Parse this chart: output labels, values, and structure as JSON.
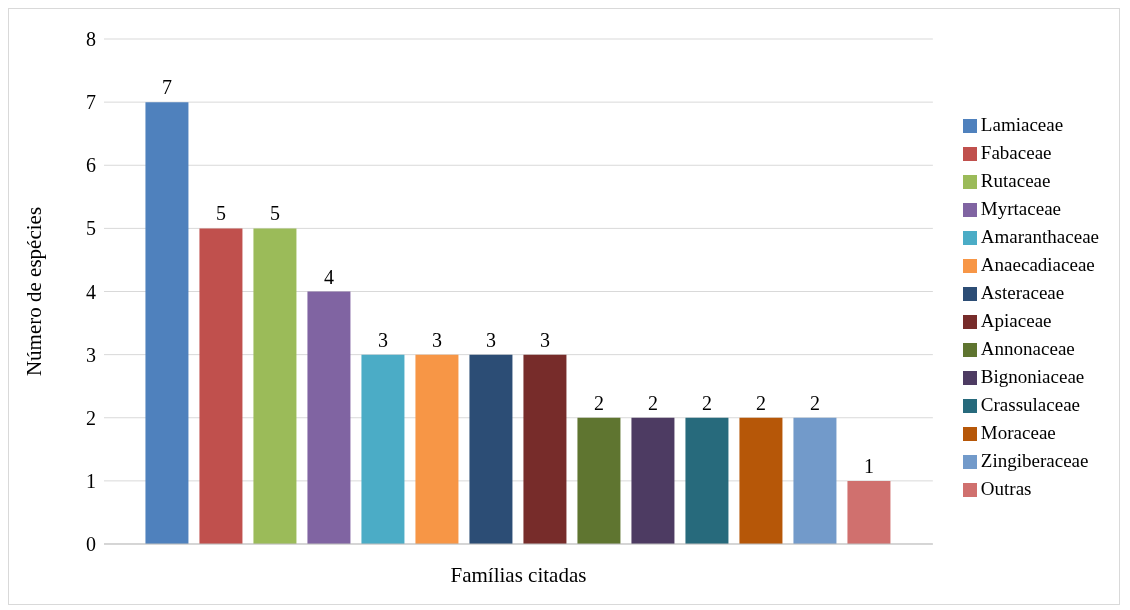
{
  "chart_data": {
    "type": "bar",
    "xlabel": "Famílias citadas",
    "ylabel": "Número de espécies",
    "categories": [
      null
    ],
    "series": [
      {
        "name": "Lamiaceae",
        "color": "#4f81bd",
        "values": [
          7
        ]
      },
      {
        "name": "Fabaceae",
        "color": "#c0504d",
        "values": [
          5
        ]
      },
      {
        "name": "Rutaceae",
        "color": "#9bbb59",
        "values": [
          5
        ]
      },
      {
        "name": "Myrtaceae",
        "color": "#8064a2",
        "values": [
          4
        ]
      },
      {
        "name": "Amaranthaceae",
        "color": "#4bacc6",
        "values": [
          3
        ]
      },
      {
        "name": "Anaecadiaceae",
        "color": "#f79646",
        "values": [
          3
        ]
      },
      {
        "name": "Asteraceae",
        "color": "#2c4d75",
        "values": [
          3
        ]
      },
      {
        "name": "Apiaceae",
        "color": "#772c2a",
        "values": [
          3
        ]
      },
      {
        "name": "Annonaceae",
        "color": "#5f7530",
        "values": [
          2
        ]
      },
      {
        "name": "Bignoniaceae",
        "color": "#4d3b62",
        "values": [
          2
        ]
      },
      {
        "name": "Crassulaceae",
        "color": "#276a7c",
        "values": [
          2
        ]
      },
      {
        "name": "Moraceae",
        "color": "#b65708",
        "values": [
          2
        ]
      },
      {
        "name": "Zingiberaceae",
        "color": "#729aca",
        "values": [
          2
        ]
      },
      {
        "name": "Outras",
        "color": "#d0706e",
        "values": [
          1
        ]
      }
    ],
    "ylim": [
      0,
      8
    ],
    "yticks": [
      0,
      1,
      2,
      3,
      4,
      5,
      6,
      7,
      8
    ],
    "grid": "y",
    "legend": "right",
    "data_labels": true
  }
}
